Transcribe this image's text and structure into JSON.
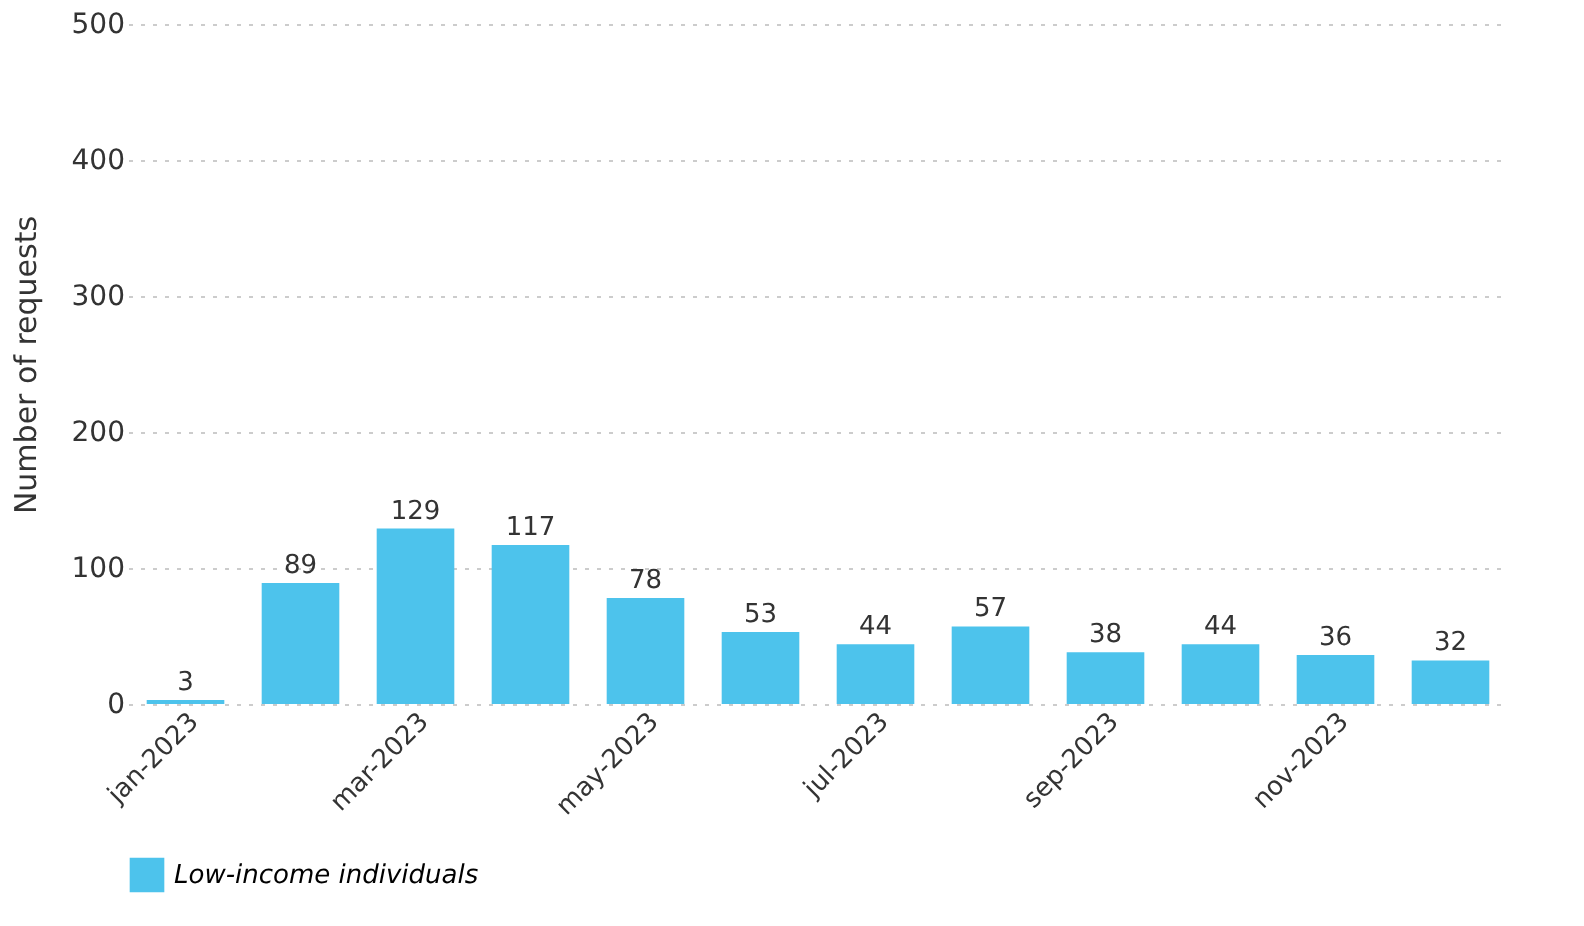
{
  "chart_data": {
    "type": "bar",
    "ylabel": "Number of requests",
    "categories": [
      "jan-2023",
      null,
      "mar-2023",
      null,
      "may-2023",
      null,
      "jul-2023",
      null,
      "sep-2023",
      null,
      "nov-2023",
      null
    ],
    "series": [
      {
        "name": "Low-income individuals",
        "color": "#4dc3ec",
        "values": [
          3,
          89,
          129,
          117,
          78,
          53,
          44,
          57,
          38,
          44,
          36,
          32
        ]
      }
    ],
    "ylim": [
      0,
      500
    ],
    "yticks": [
      0,
      100,
      200,
      300,
      400,
      500
    ],
    "grid": "y",
    "legend": "bottom",
    "data_labels": true
  }
}
